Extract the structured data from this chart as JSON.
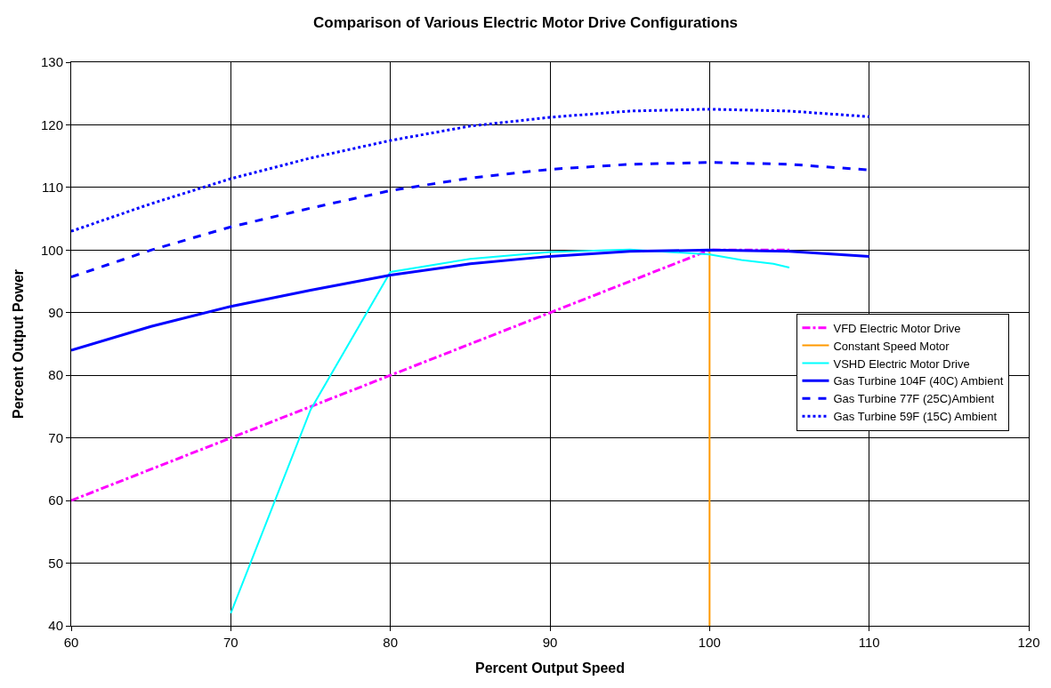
{
  "chart_data": {
    "type": "line",
    "title": "Comparison of Various Electric Motor Drive Configurations",
    "xlabel": "Percent Output Speed",
    "ylabel": "Percent Output Power",
    "xlim": [
      60,
      120
    ],
    "xticks": [
      60,
      70,
      80,
      90,
      100,
      110,
      120
    ],
    "ylim": [
      40,
      130
    ],
    "yticks": [
      40,
      50,
      60,
      70,
      80,
      90,
      100,
      110,
      120,
      130
    ],
    "grid": true,
    "legend": "right",
    "marker": "none",
    "series": [
      {
        "name": "VFD Electric Motor Drive",
        "color": "#ff00ff",
        "line_style": "dashdot",
        "x": [
          60,
          70,
          80,
          90,
          100,
          105
        ],
        "values": [
          60,
          70,
          80,
          90,
          100,
          100
        ]
      },
      {
        "name": "Constant Speed Motor",
        "color": "#ff9900",
        "line_style": "solid",
        "x": [
          100,
          100
        ],
        "values": [
          40,
          100
        ]
      },
      {
        "name": "VSHD Electric Motor Drive",
        "color": "#00ffff",
        "line_style": "solid",
        "x": [
          70,
          75,
          80,
          85,
          90,
          95,
          100,
          102,
          104,
          105
        ],
        "values": [
          42,
          74.5,
          96.5,
          98.6,
          99.7,
          100.1,
          99.3,
          98.4,
          97.8,
          97.2
        ]
      },
      {
        "name": "Gas Turbine 104F (40C) Ambient",
        "color": "#0000ff",
        "line_style": "solid",
        "x": [
          60,
          65,
          70,
          75,
          80,
          85,
          90,
          95,
          100,
          105,
          110
        ],
        "values": [
          84,
          87.8,
          91,
          93.6,
          96,
          97.8,
          99,
          99.8,
          100,
          99.8,
          99
        ]
      },
      {
        "name": "Gas Turbine 77F (25C)Ambient",
        "color": "#0000ff",
        "line_style": "dashed",
        "x": [
          60,
          65,
          70,
          75,
          80,
          85,
          90,
          95,
          100,
          105,
          110
        ],
        "values": [
          95.7,
          100,
          103.7,
          106.7,
          109.5,
          111.5,
          112.9,
          113.7,
          114,
          113.7,
          112.8
        ]
      },
      {
        "name": "Gas Turbine 59F (15C) Ambient",
        "color": "#0000ff",
        "line_style": "dotted",
        "x": [
          60,
          65,
          70,
          75,
          80,
          85,
          90,
          95,
          100,
          105,
          110
        ],
        "values": [
          103,
          107.4,
          111.4,
          114.7,
          117.5,
          119.8,
          121.2,
          122.2,
          122.5,
          122.2,
          121.3
        ]
      }
    ]
  }
}
